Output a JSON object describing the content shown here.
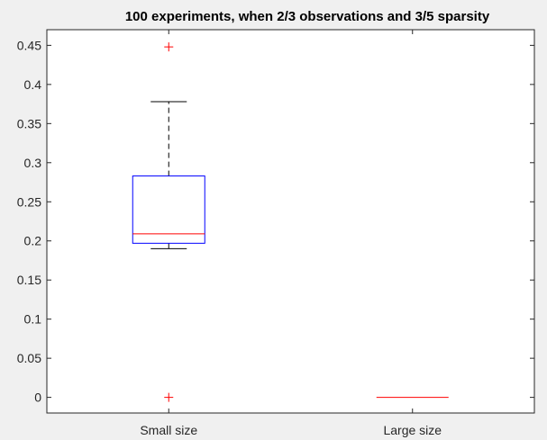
{
  "chart_data": {
    "type": "box",
    "title": "100 experiments, when 2/3 observations and 3/5 sparsity",
    "xlabel": "",
    "ylabel": "",
    "categories": [
      "Small size",
      "Large size"
    ],
    "ylim": [
      -0.02,
      0.47
    ],
    "yticks": [
      0,
      0.05,
      0.1,
      0.15,
      0.2,
      0.25,
      0.3,
      0.35,
      0.4,
      0.45
    ],
    "ytick_labels": [
      "0",
      "0.05",
      "0.1",
      "0.15",
      "0.2",
      "0.25",
      "0.3",
      "0.35",
      "0.4",
      "0.45"
    ],
    "boxes": [
      {
        "category": "Small size",
        "whisker_low": 0.19,
        "q1": 0.197,
        "median": 0.209,
        "q3": 0.283,
        "whisker_high": 0.378,
        "outliers": [
          0.448,
          0.0
        ]
      },
      {
        "category": "Large size",
        "whisker_low": 0.0,
        "q1": 0.0,
        "median": 0.0,
        "q3": 0.0,
        "whisker_high": 0.0,
        "outliers": []
      }
    ],
    "colors": {
      "box": "#0000ff",
      "median": "#ff0000",
      "whisker": "#000000",
      "outlier": "#ff0000",
      "axes_bg": "#ffffff",
      "figure_bg": "#f0f0f0"
    },
    "grid": false,
    "legend": "none"
  }
}
